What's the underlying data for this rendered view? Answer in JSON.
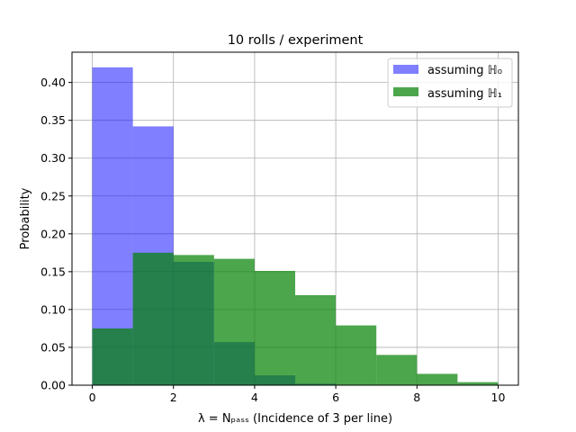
{
  "chart_data": {
    "type": "bar",
    "title": "10 rolls / experiment",
    "xlabel": "λ = Nₚₐₛₛ (Incidence of 3 per line)",
    "ylabel": "Probability",
    "xlim": [
      -0.5,
      10.5
    ],
    "ylim": [
      0,
      0.44
    ],
    "xticks": [
      0,
      2,
      4,
      6,
      8,
      10
    ],
    "xtick_labels": [
      "0",
      "2",
      "4",
      "6",
      "8",
      "10"
    ],
    "yticks": [
      0.0,
      0.05,
      0.1,
      0.15,
      0.2,
      0.25,
      0.3,
      0.35,
      0.4
    ],
    "ytick_labels": [
      "0.00",
      "0.05",
      "0.10",
      "0.15",
      "0.20",
      "0.25",
      "0.30",
      "0.35",
      "0.40"
    ],
    "grid": true,
    "legend_position": "top-right",
    "bin_edges": [
      0,
      1,
      2,
      3,
      4,
      5,
      6,
      7,
      8,
      9,
      10
    ],
    "series": [
      {
        "name": "assuming ℍ₀",
        "color": "#0000ff",
        "opacity": 0.5,
        "values": [
          0.42,
          0.342,
          0.163,
          0.057,
          0.013,
          0.002,
          0.0,
          0.0,
          0.0,
          0.0
        ]
      },
      {
        "name": "assuming ℍ₁",
        "color": "#008000",
        "opacity": 0.7,
        "values": [
          0.075,
          0.175,
          0.172,
          0.167,
          0.151,
          0.119,
          0.079,
          0.04,
          0.015,
          0.004
        ]
      }
    ]
  }
}
